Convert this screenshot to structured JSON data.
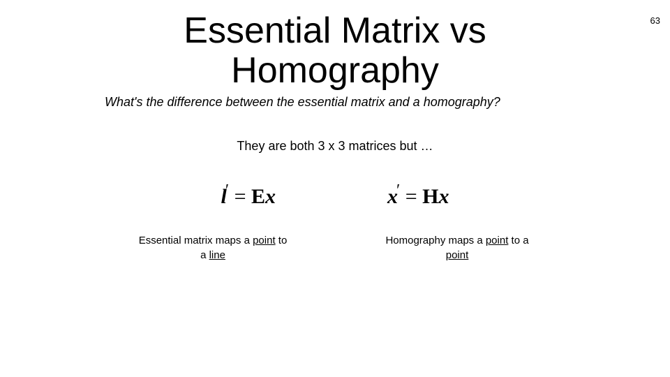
{
  "page_number": "63",
  "title_line1": "Essential Matrix vs",
  "title_line2": "Homography",
  "subtitle": "What's the difference between the essential matrix and a homography?",
  "line2": "They are both 3 x 3 matrices but …",
  "equations": {
    "left": {
      "lhs_var": "l",
      "prime": "′",
      "eq": " = ",
      "matrix": "E",
      "rhs_var": "x"
    },
    "right": {
      "lhs_var": "x",
      "prime": "′",
      "eq": " = ",
      "matrix": "H",
      "rhs_var": "x"
    }
  },
  "captions": {
    "left": {
      "pre": "Essential matrix maps a ",
      "u1": "point",
      "mid": " to a ",
      "u2": "line"
    },
    "right": {
      "pre": "Homography maps a ",
      "u1": "point",
      "mid": " to a ",
      "u2": "point"
    }
  },
  "colors": {
    "background": "#ffffff",
    "text": "#000000"
  },
  "fonts": {
    "body": "Arial",
    "math": "Times New Roman",
    "title_size_pt": 52,
    "body_size_pt": 18,
    "caption_size_pt": 15,
    "eq_size_pt": 30
  }
}
